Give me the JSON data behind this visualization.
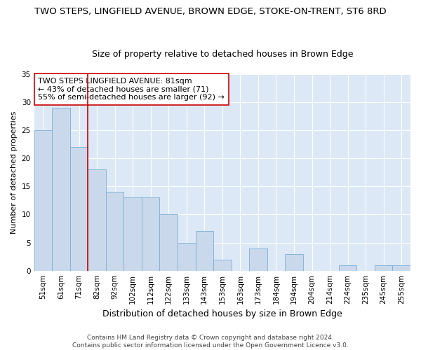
{
  "title": "TWO STEPS, LINGFIELD AVENUE, BROWN EDGE, STOKE-ON-TRENT, ST6 8RD",
  "subtitle": "Size of property relative to detached houses in Brown Edge",
  "xlabel": "Distribution of detached houses by size in Brown Edge",
  "ylabel": "Number of detached properties",
  "categories": [
    "51sqm",
    "61sqm",
    "71sqm",
    "82sqm",
    "92sqm",
    "102sqm",
    "112sqm",
    "122sqm",
    "133sqm",
    "143sqm",
    "153sqm",
    "163sqm",
    "173sqm",
    "184sqm",
    "194sqm",
    "204sqm",
    "214sqm",
    "224sqm",
    "235sqm",
    "245sqm",
    "255sqm"
  ],
  "values": [
    25,
    29,
    22,
    18,
    14,
    13,
    13,
    10,
    5,
    7,
    2,
    0,
    4,
    0,
    3,
    0,
    0,
    1,
    0,
    1,
    1
  ],
  "bar_color": "#c9d9eb",
  "bar_edgecolor": "#7bafd4",
  "vline_x_index": 2,
  "vline_color": "#cc0000",
  "annotation_text": "TWO STEPS LINGFIELD AVENUE: 81sqm\n← 43% of detached houses are smaller (71)\n55% of semi-detached houses are larger (92) →",
  "annotation_box_color": "#ffffff",
  "annotation_box_edgecolor": "#cc0000",
  "ylim": [
    0,
    35
  ],
  "yticks": [
    0,
    5,
    10,
    15,
    20,
    25,
    30,
    35
  ],
  "background_color": "#dce8f5",
  "grid_color": "#ffffff",
  "footer_text": "Contains HM Land Registry data © Crown copyright and database right 2024.\nContains public sector information licensed under the Open Government Licence v3.0.",
  "title_fontsize": 9.5,
  "subtitle_fontsize": 9,
  "ylabel_fontsize": 8,
  "xlabel_fontsize": 9,
  "tick_fontsize": 7.5,
  "annotation_fontsize": 8,
  "footer_fontsize": 6.5
}
